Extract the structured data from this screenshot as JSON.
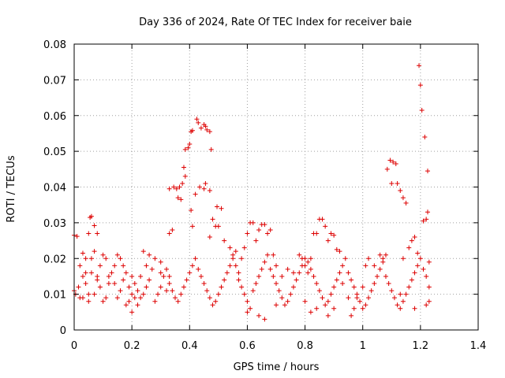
{
  "chart_data": {
    "type": "scatter",
    "title": "Day 336 of 2024, Rate Of TEC Index for receiver baie",
    "xlabel": "GPS time / hours",
    "ylabel": "ROTI / TECUs",
    "xlim": [
      0,
      1.4
    ],
    "ylim": [
      0,
      0.08
    ],
    "xticks": [
      0,
      0.2,
      0.4,
      0.6,
      0.8,
      1,
      1.2,
      1.4
    ],
    "xtick_labels": [
      "0",
      "0.2",
      "0.4",
      "0.6",
      "0.8",
      "1",
      "1.2",
      "1.4"
    ],
    "yticks": [
      0,
      0.01,
      0.02,
      0.03,
      0.04,
      0.05,
      0.06,
      0.07,
      0.08
    ],
    "ytick_labels": [
      "0",
      "0.01",
      "0.02",
      "0.03",
      "0.04",
      "0.05",
      "0.06",
      "0.07",
      "0.08"
    ],
    "grid": true,
    "marker": "plus",
    "color": "#dd0000",
    "series": [
      {
        "points": [
          [
            0.0,
            0.0265
          ],
          [
            0.01,
            0.0262
          ],
          [
            0.02,
            0.018
          ],
          [
            0.005,
            0.01
          ],
          [
            0.015,
            0.012
          ],
          [
            0.03,
            0.0215
          ],
          [
            0.04,
            0.02
          ],
          [
            0.05,
            0.027
          ],
          [
            0.055,
            0.0315
          ],
          [
            0.06,
            0.0318
          ],
          [
            0.07,
            0.0292
          ],
          [
            0.08,
            0.027
          ],
          [
            0.04,
            0.013
          ],
          [
            0.06,
            0.016
          ],
          [
            0.08,
            0.015
          ],
          [
            0.1,
            0.021
          ],
          [
            0.11,
            0.02
          ],
          [
            0.09,
            0.018
          ],
          [
            0.07,
            0.01
          ],
          [
            0.03,
            0.009
          ],
          [
            0.05,
            0.008
          ],
          [
            0.12,
            0.015
          ],
          [
            0.14,
            0.013
          ],
          [
            0.15,
            0.021
          ],
          [
            0.16,
            0.02
          ],
          [
            0.17,
            0.018
          ],
          [
            0.18,
            0.016
          ],
          [
            0.19,
            0.012
          ],
          [
            0.2,
            0.01
          ],
          [
            0.21,
            0.009
          ],
          [
            0.2,
            0.005
          ],
          [
            0.22,
            0.007
          ],
          [
            0.23,
            0.015
          ],
          [
            0.24,
            0.022
          ],
          [
            0.25,
            0.018
          ],
          [
            0.26,
            0.021
          ],
          [
            0.28,
            0.02
          ],
          [
            0.3,
            0.016
          ],
          [
            0.3,
            0.012
          ],
          [
            0.32,
            0.011
          ],
          [
            0.33,
            0.015
          ],
          [
            0.33,
            0.027
          ],
          [
            0.34,
            0.028
          ],
          [
            0.33,
            0.0395
          ],
          [
            0.345,
            0.04
          ],
          [
            0.355,
            0.0395
          ],
          [
            0.365,
            0.04
          ],
          [
            0.36,
            0.037
          ],
          [
            0.37,
            0.0365
          ],
          [
            0.375,
            0.041
          ],
          [
            0.38,
            0.0455
          ],
          [
            0.385,
            0.043
          ],
          [
            0.385,
            0.0505
          ],
          [
            0.395,
            0.051
          ],
          [
            0.4,
            0.052
          ],
          [
            0.405,
            0.0555
          ],
          [
            0.41,
            0.0558
          ],
          [
            0.405,
            0.0335
          ],
          [
            0.41,
            0.029
          ],
          [
            0.42,
            0.038
          ],
          [
            0.425,
            0.059
          ],
          [
            0.43,
            0.058
          ],
          [
            0.435,
            0.04
          ],
          [
            0.44,
            0.0565
          ],
          [
            0.45,
            0.0575
          ],
          [
            0.455,
            0.057
          ],
          [
            0.46,
            0.056
          ],
          [
            0.47,
            0.0555
          ],
          [
            0.475,
            0.0505
          ],
          [
            0.455,
            0.041
          ],
          [
            0.45,
            0.0395
          ],
          [
            0.47,
            0.039
          ],
          [
            0.48,
            0.031
          ],
          [
            0.49,
            0.029
          ],
          [
            0.495,
            0.0345
          ],
          [
            0.5,
            0.029
          ],
          [
            0.51,
            0.034
          ],
          [
            0.47,
            0.026
          ],
          [
            0.52,
            0.025
          ],
          [
            0.54,
            0.023
          ],
          [
            0.55,
            0.021
          ],
          [
            0.56,
            0.018
          ],
          [
            0.57,
            0.016
          ],
          [
            0.58,
            0.02
          ],
          [
            0.59,
            0.023
          ],
          [
            0.6,
            0.027
          ],
          [
            0.61,
            0.03
          ],
          [
            0.62,
            0.03
          ],
          [
            0.63,
            0.025
          ],
          [
            0.64,
            0.028
          ],
          [
            0.65,
            0.0295
          ],
          [
            0.66,
            0.0295
          ],
          [
            0.67,
            0.027
          ],
          [
            0.68,
            0.028
          ],
          [
            0.69,
            0.021
          ],
          [
            0.7,
            0.018
          ],
          [
            0.6,
            0.005
          ],
          [
            0.64,
            0.004
          ],
          [
            0.66,
            0.003
          ],
          [
            0.7,
            0.007
          ],
          [
            0.72,
            0.015
          ],
          [
            0.74,
            0.017
          ],
          [
            0.76,
            0.016
          ],
          [
            0.78,
            0.021
          ],
          [
            0.79,
            0.02
          ],
          [
            0.8,
            0.018
          ],
          [
            0.81,
            0.016
          ],
          [
            0.82,
            0.02
          ],
          [
            0.83,
            0.027
          ],
          [
            0.84,
            0.027
          ],
          [
            0.85,
            0.031
          ],
          [
            0.86,
            0.031
          ],
          [
            0.87,
            0.029
          ],
          [
            0.88,
            0.025
          ],
          [
            0.89,
            0.027
          ],
          [
            0.9,
            0.0265
          ],
          [
            0.91,
            0.0225
          ],
          [
            0.92,
            0.022
          ],
          [
            0.8,
            0.008
          ],
          [
            0.82,
            0.005
          ],
          [
            0.84,
            0.006
          ],
          [
            0.88,
            0.004
          ],
          [
            0.9,
            0.006
          ],
          [
            0.93,
            0.013
          ],
          [
            0.95,
            0.009
          ],
          [
            0.96,
            0.004
          ],
          [
            0.97,
            0.006
          ],
          [
            0.98,
            0.009
          ],
          [
            1.0,
            0.012
          ],
          [
            1.01,
            0.018
          ],
          [
            1.02,
            0.02
          ],
          [
            1.04,
            0.018
          ],
          [
            1.06,
            0.021
          ],
          [
            1.07,
            0.02
          ],
          [
            1.08,
            0.021
          ],
          [
            1.085,
            0.045
          ],
          [
            1.095,
            0.0475
          ],
          [
            1.1,
            0.041
          ],
          [
            1.105,
            0.047
          ],
          [
            1.115,
            0.0465
          ],
          [
            1.12,
            0.041
          ],
          [
            1.13,
            0.039
          ],
          [
            1.14,
            0.037
          ],
          [
            1.15,
            0.0355
          ],
          [
            1.13,
            0.01
          ],
          [
            1.14,
            0.02
          ],
          [
            1.16,
            0.023
          ],
          [
            1.17,
            0.025
          ],
          [
            1.18,
            0.026
          ],
          [
            1.19,
            0.0215
          ],
          [
            1.195,
            0.074
          ],
          [
            1.2,
            0.0685
          ],
          [
            1.205,
            0.0615
          ],
          [
            1.21,
            0.0305
          ],
          [
            1.215,
            0.054
          ],
          [
            1.22,
            0.031
          ],
          [
            1.225,
            0.033
          ],
          [
            1.225,
            0.0445
          ],
          [
            1.23,
            0.019
          ],
          [
            1.23,
            0.008
          ],
          [
            1.22,
            0.007
          ],
          [
            1.18,
            0.006
          ],
          [
            0.0,
            0.011
          ],
          [
            0.02,
            0.009
          ],
          [
            0.03,
            0.015
          ],
          [
            0.04,
            0.016
          ],
          [
            0.05,
            0.01
          ],
          [
            0.06,
            0.02
          ],
          [
            0.07,
            0.022
          ],
          [
            0.08,
            0.014
          ],
          [
            0.09,
            0.012
          ],
          [
            0.1,
            0.008
          ],
          [
            0.11,
            0.009
          ],
          [
            0.12,
            0.013
          ],
          [
            0.13,
            0.016
          ],
          [
            0.14,
            0.018
          ],
          [
            0.15,
            0.009
          ],
          [
            0.16,
            0.011
          ],
          [
            0.17,
            0.014
          ],
          [
            0.18,
            0.007
          ],
          [
            0.19,
            0.008
          ],
          [
            0.2,
            0.015
          ],
          [
            0.21,
            0.013
          ],
          [
            0.22,
            0.011
          ],
          [
            0.23,
            0.009
          ],
          [
            0.24,
            0.01
          ],
          [
            0.25,
            0.012
          ],
          [
            0.26,
            0.014
          ],
          [
            0.27,
            0.017
          ],
          [
            0.28,
            0.008
          ],
          [
            0.29,
            0.01
          ],
          [
            0.3,
            0.019
          ],
          [
            0.31,
            0.015
          ],
          [
            0.32,
            0.017
          ],
          [
            0.33,
            0.013
          ],
          [
            0.34,
            0.011
          ],
          [
            0.35,
            0.009
          ],
          [
            0.36,
            0.008
          ],
          [
            0.37,
            0.01
          ],
          [
            0.38,
            0.012
          ],
          [
            0.39,
            0.014
          ],
          [
            0.4,
            0.016
          ],
          [
            0.41,
            0.018
          ],
          [
            0.42,
            0.02
          ],
          [
            0.43,
            0.017
          ],
          [
            0.44,
            0.015
          ],
          [
            0.45,
            0.013
          ],
          [
            0.46,
            0.011
          ],
          [
            0.47,
            0.009
          ],
          [
            0.48,
            0.007
          ],
          [
            0.49,
            0.008
          ],
          [
            0.5,
            0.01
          ],
          [
            0.51,
            0.012
          ],
          [
            0.52,
            0.014
          ],
          [
            0.53,
            0.016
          ],
          [
            0.54,
            0.018
          ],
          [
            0.55,
            0.02
          ],
          [
            0.56,
            0.022
          ],
          [
            0.57,
            0.014
          ],
          [
            0.58,
            0.012
          ],
          [
            0.59,
            0.01
          ],
          [
            0.6,
            0.008
          ],
          [
            0.61,
            0.006
          ],
          [
            0.62,
            0.011
          ],
          [
            0.63,
            0.013
          ],
          [
            0.64,
            0.015
          ],
          [
            0.65,
            0.017
          ],
          [
            0.66,
            0.019
          ],
          [
            0.67,
            0.021
          ],
          [
            0.68,
            0.017
          ],
          [
            0.69,
            0.015
          ],
          [
            0.7,
            0.013
          ],
          [
            0.71,
            0.011
          ],
          [
            0.72,
            0.009
          ],
          [
            0.73,
            0.007
          ],
          [
            0.74,
            0.008
          ],
          [
            0.75,
            0.01
          ],
          [
            0.76,
            0.012
          ],
          [
            0.77,
            0.014
          ],
          [
            0.78,
            0.016
          ],
          [
            0.79,
            0.018
          ],
          [
            0.8,
            0.02
          ],
          [
            0.81,
            0.019
          ],
          [
            0.82,
            0.017
          ],
          [
            0.83,
            0.015
          ],
          [
            0.84,
            0.013
          ],
          [
            0.85,
            0.011
          ],
          [
            0.86,
            0.009
          ],
          [
            0.87,
            0.007
          ],
          [
            0.88,
            0.008
          ],
          [
            0.89,
            0.01
          ],
          [
            0.9,
            0.012
          ],
          [
            0.91,
            0.014
          ],
          [
            0.92,
            0.016
          ],
          [
            0.93,
            0.018
          ],
          [
            0.94,
            0.02
          ],
          [
            0.95,
            0.016
          ],
          [
            0.96,
            0.014
          ],
          [
            0.97,
            0.012
          ],
          [
            0.98,
            0.01
          ],
          [
            0.99,
            0.008
          ],
          [
            1.0,
            0.006
          ],
          [
            1.01,
            0.007
          ],
          [
            1.02,
            0.009
          ],
          [
            1.03,
            0.011
          ],
          [
            1.04,
            0.013
          ],
          [
            1.05,
            0.015
          ],
          [
            1.06,
            0.017
          ],
          [
            1.07,
            0.019
          ],
          [
            1.08,
            0.015
          ],
          [
            1.09,
            0.013
          ],
          [
            1.1,
            0.011
          ],
          [
            1.11,
            0.009
          ],
          [
            1.12,
            0.007
          ],
          [
            1.13,
            0.006
          ],
          [
            1.14,
            0.008
          ],
          [
            1.15,
            0.01
          ],
          [
            1.16,
            0.012
          ],
          [
            1.17,
            0.014
          ],
          [
            1.18,
            0.016
          ],
          [
            1.19,
            0.018
          ],
          [
            1.2,
            0.02
          ],
          [
            1.21,
            0.017
          ],
          [
            1.22,
            0.015
          ],
          [
            1.23,
            0.012
          ]
        ]
      }
    ]
  }
}
